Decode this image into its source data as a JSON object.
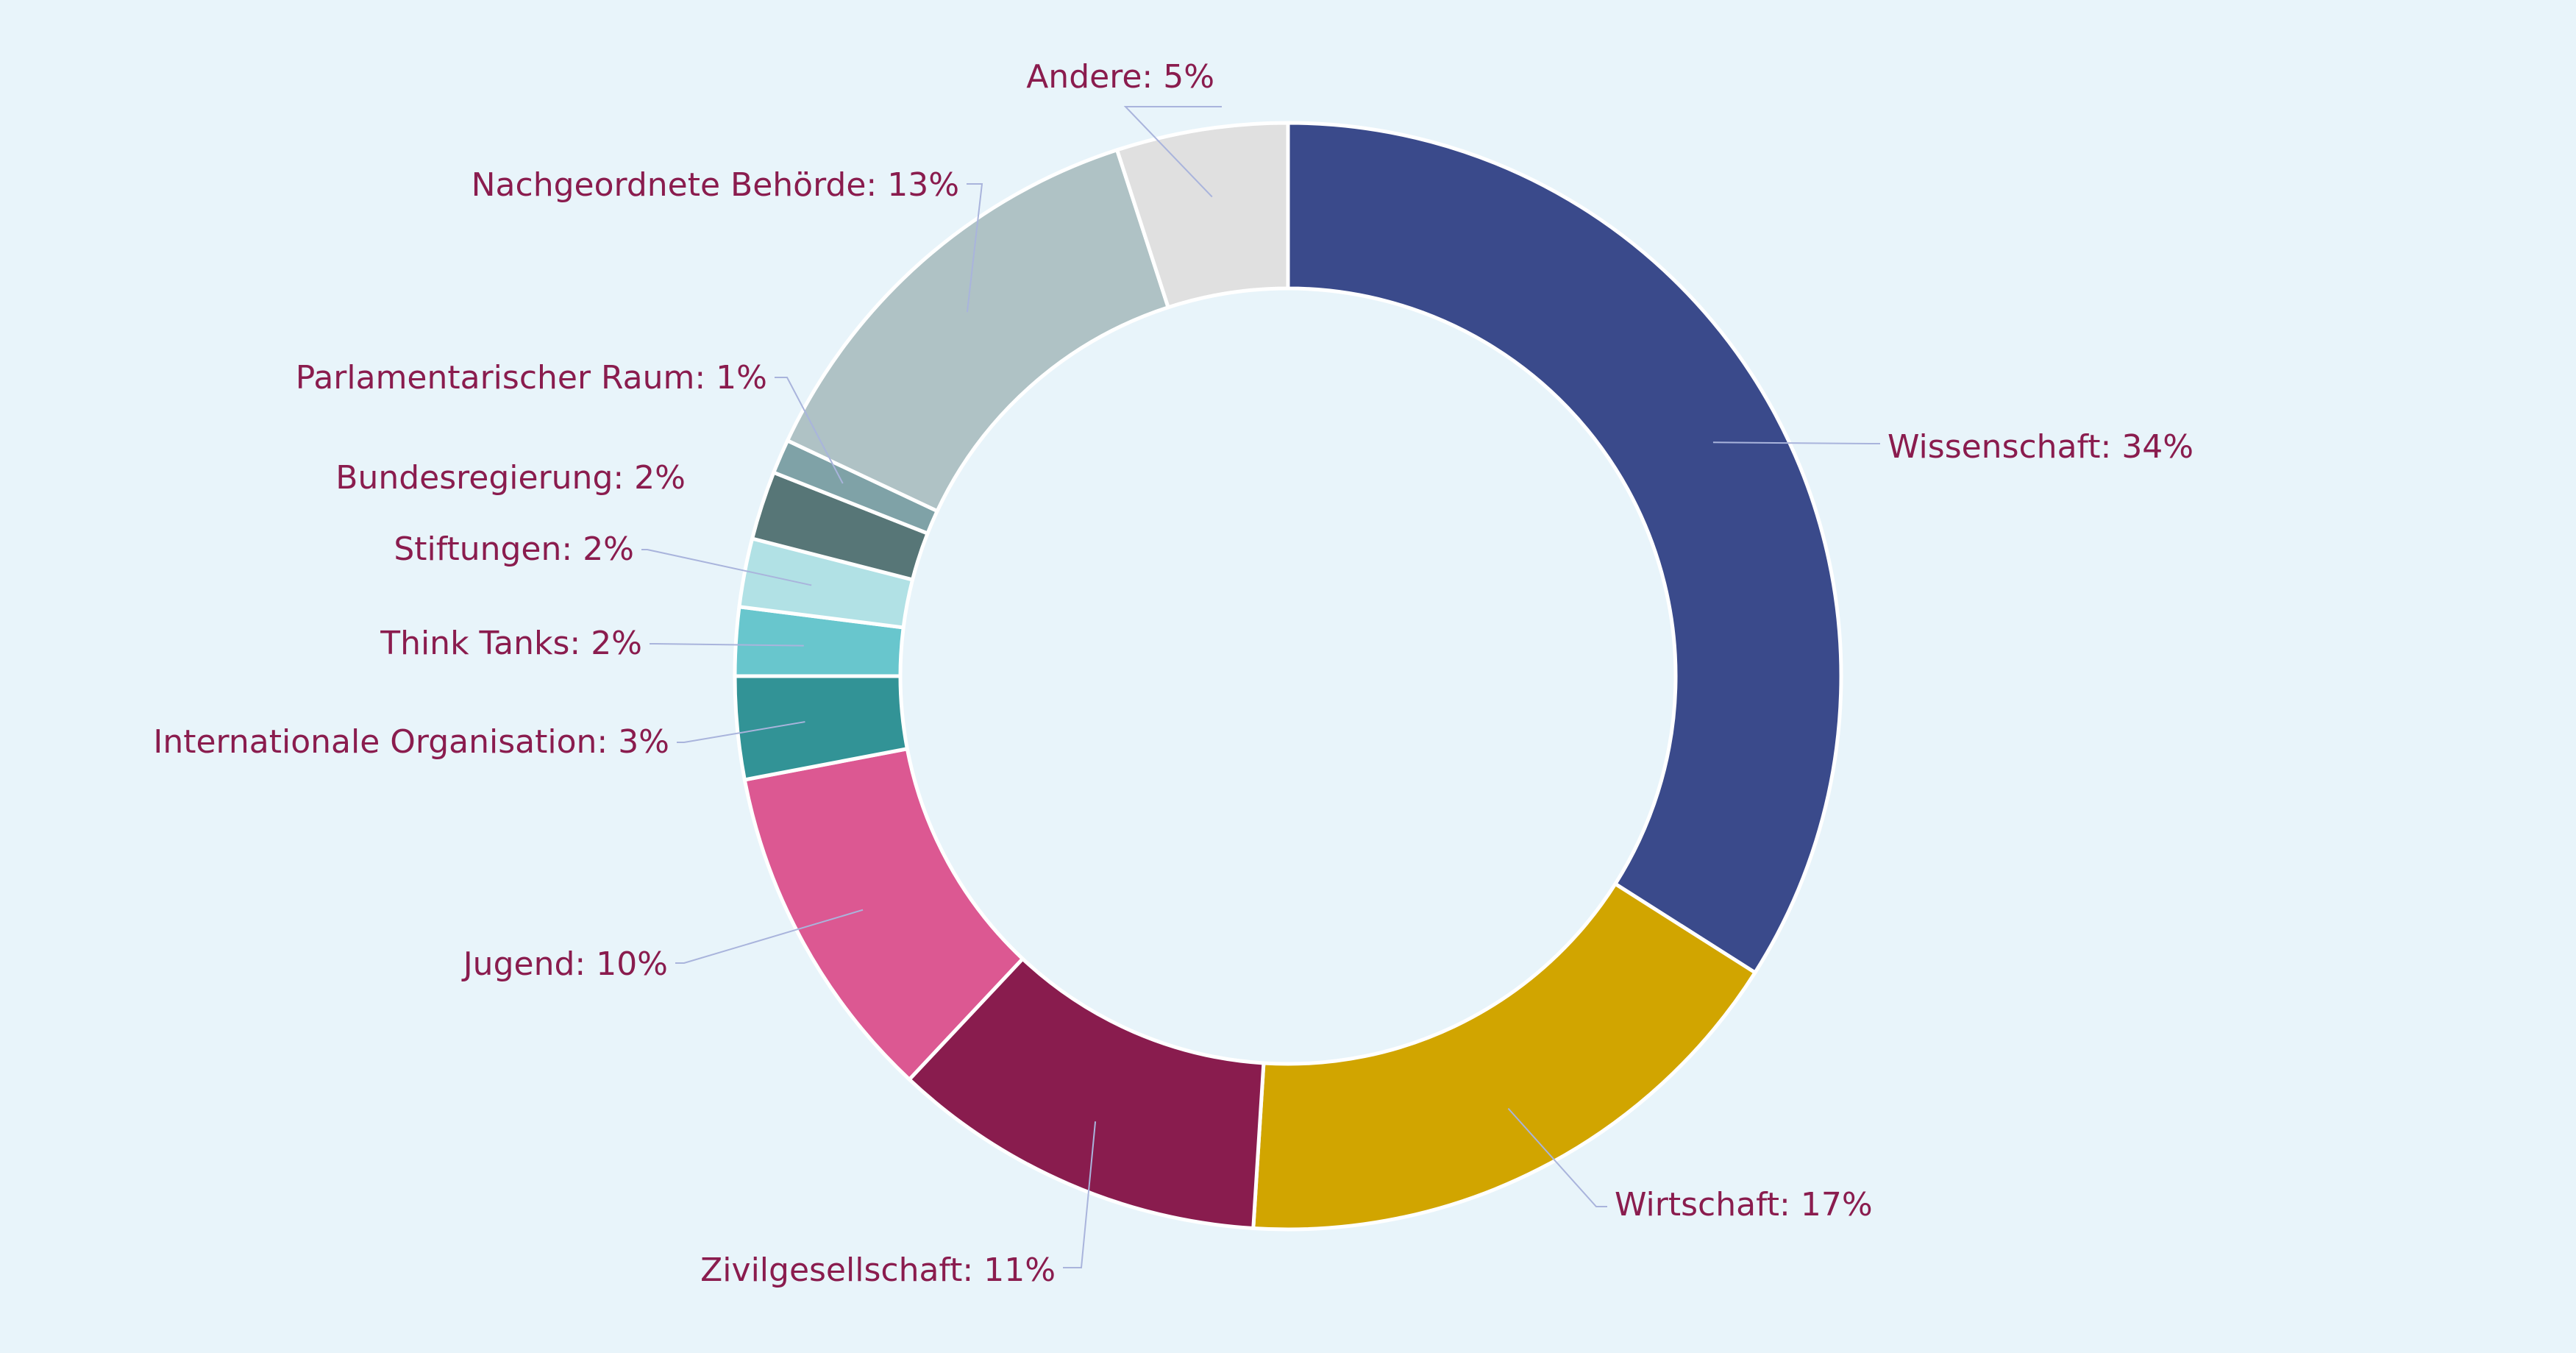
{
  "chart_data": {
    "type": "pie",
    "variant": "donut",
    "legend": "none",
    "labels": [
      "Wissenschaft",
      "Wirtschaft",
      "Zivilgesellschaft",
      "Jugend",
      "Internationale Organisation",
      "Think Tanks",
      "Stiftungen",
      "Bundesregierung",
      "Parlamentarischer Raum",
      "Nachgeordnete Behörde",
      "Andere"
    ],
    "values": [
      34,
      17,
      11,
      10,
      3,
      2,
      2,
      2,
      1,
      13,
      5
    ],
    "value_labels": [
      "Wissenschaft:  34%",
      "Wirtschaft:  17%",
      "Zivilgesellschaft:  11%",
      "Jugend:  10%",
      "Internationale Organisation:  3%",
      "Think Tanks:  2%",
      "Stiftungen:  2%",
      "Bundesregierung:  2%",
      "Parlamentarischer Raum:  1%",
      "Nachgeordnete Behörde:  13%",
      "Andere:  5%"
    ],
    "colors": [
      "#3a4a8b",
      "#d1a500",
      "#891c4e",
      "#dc5892",
      "#329396",
      "#68c6cd",
      "#b1e1e5",
      "#577677",
      "#7fa2a7",
      "#afc2c5",
      "#e0e0e0"
    ],
    "start": "12 o'clock",
    "direction": "clockwise"
  },
  "colors": {
    "background": "#e8f4fa",
    "label_text": "#8a1c4e",
    "leader_line": "#a9b4dc",
    "slice_border": "#ffffff"
  }
}
